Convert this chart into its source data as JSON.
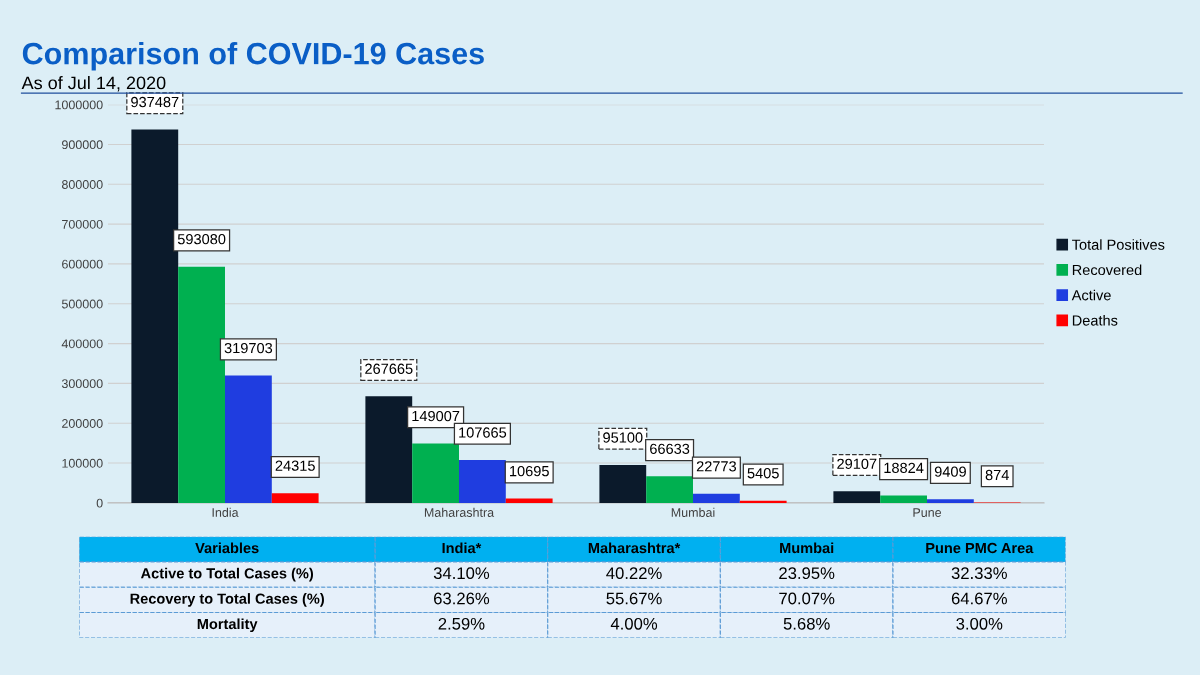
{
  "chart_data": [
    {
      "type": "bar",
      "title": "Comparison of COVID-19 Cases",
      "subtitle": "As of Jul 14, 2020",
      "categories": [
        "India",
        "Maharashtra",
        "Mumbai",
        "Pune"
      ],
      "series": [
        {
          "name": "Total Positives",
          "color": "#0b1a2b",
          "values": [
            937487,
            267665,
            95100,
            29107
          ]
        },
        {
          "name": "Recovered",
          "color": "#00b050",
          "values": [
            593080,
            149007,
            66633,
            18824
          ]
        },
        {
          "name": "Active",
          "color": "#1f3de0",
          "values": [
            319703,
            107665,
            22773,
            9409
          ]
        },
        {
          "name": "Deaths",
          "color": "#ff0000",
          "values": [
            24315,
            10695,
            5405,
            874
          ]
        }
      ],
      "ylim": [
        0,
        1000000
      ],
      "yticks": [
        0,
        100000,
        200000,
        300000,
        400000,
        500000,
        600000,
        700000,
        800000,
        900000,
        1000000
      ],
      "grid": "y",
      "legend": "right",
      "data_labels": true
    },
    {
      "type": "other",
      "categories": [
        "Variables",
        "India*",
        "Maharashtra*",
        "Mumbai",
        "Pune PMC Area"
      ],
      "y_categories": [
        "Active to Total Cases (%)",
        "Recovery to Total Cases (%)",
        "Mortality"
      ],
      "cell_labels": [
        [
          "34.10%",
          "40.22%",
          "23.95%",
          "32.33%"
        ],
        [
          "63.26%",
          "55.67%",
          "70.07%",
          "64.67%"
        ],
        [
          "2.59%",
          "4.00%",
          "5.68%",
          "3.00%"
        ]
      ]
    }
  ]
}
